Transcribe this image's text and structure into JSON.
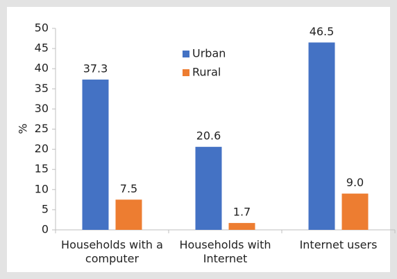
{
  "chart_data": {
    "type": "bar",
    "y_label": "%",
    "categories": [
      "Households with a computer",
      "Households with Internet",
      "Internet users"
    ],
    "series": [
      {
        "name": "Urban",
        "color": "#4472c4",
        "values": [
          37.3,
          20.6,
          46.5
        ],
        "value_labels": [
          "37.3",
          "20.6",
          "46.5"
        ]
      },
      {
        "name": "Rural",
        "color": "#ed7d31",
        "values": [
          7.5,
          1.7,
          9.0
        ],
        "value_labels": [
          "7.5",
          "1.7",
          "9.0"
        ]
      }
    ],
    "ylim": [
      0,
      50
    ],
    "yticks": [
      0,
      5,
      10,
      15,
      20,
      25,
      30,
      35,
      40,
      45,
      50
    ],
    "grid": false,
    "legend": "top-center"
  }
}
